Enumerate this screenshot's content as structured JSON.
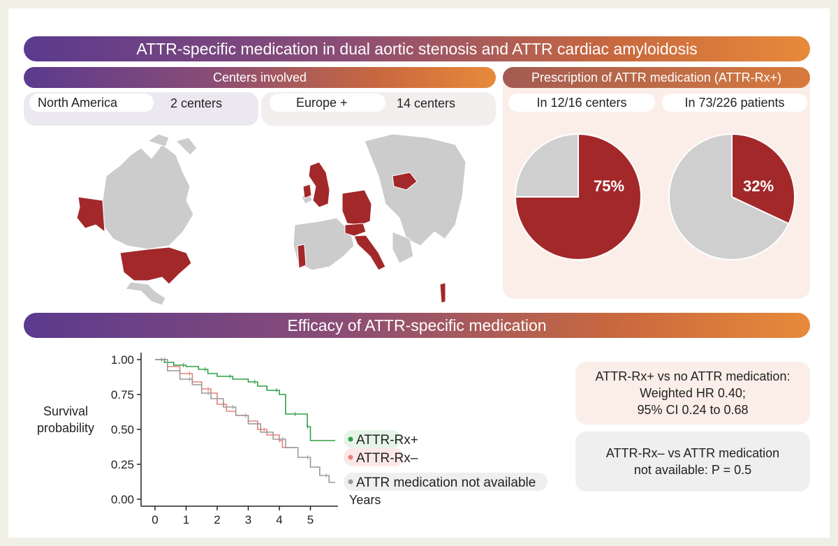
{
  "header": {
    "title": "ATTR-specific medication in dual aortic stenosis and ATTR cardiac amyloidosis"
  },
  "centers": {
    "title": "Centers involved",
    "north_america": {
      "label": "North America",
      "count": "2 centers"
    },
    "europe": {
      "label": "Europe +",
      "count": "14 centers"
    }
  },
  "prescription": {
    "title": "Prescription of ATTR medication (ATTR-Rx+)",
    "centers_label": "In 12/16 centers",
    "patients_label": "In 73/226 patients",
    "pie_centers": {
      "value_label": "75%",
      "fraction": 0.75
    },
    "pie_patients": {
      "value_label": "32%",
      "fraction": 0.32
    }
  },
  "efficacy": {
    "title": "Efficacy of ATTR-specific medication",
    "box1": {
      "line1": "ATTR-Rx+ vs no ATTR medication:",
      "line2": "Weighted HR 0.40;",
      "line3": "95% CI 0.24 to 0.68"
    },
    "box2": {
      "line1": "ATTR-Rx– vs ATTR medication",
      "line2": "not available: P = 0.5"
    }
  },
  "colors": {
    "highlight": "#a3282a",
    "grey": "#cfcfcf",
    "rxplus": "#2ea043",
    "rxminus": "#e8807c",
    "notavail": "#9a9a9a"
  },
  "chart_data": {
    "type": "line",
    "ylabel_line1": "Survival",
    "ylabel_line2": "probability",
    "xlabel": "Years",
    "xlim": [
      0,
      6
    ],
    "ylim": [
      0,
      1
    ],
    "xticks": [
      "0",
      "1",
      "2",
      "3",
      "4",
      "5"
    ],
    "yticks": [
      "0.00",
      "0.25",
      "0.50",
      "0.75",
      "1.00"
    ],
    "series": [
      {
        "name": "ATTR-Rx+",
        "color": "#2ea043",
        "x": [
          0,
          0.3,
          0.6,
          1.0,
          1.4,
          1.7,
          2.0,
          2.5,
          3.0,
          3.3,
          3.6,
          4.0,
          4.2,
          4.6,
          4.9,
          5.0,
          5.8
        ],
        "y": [
          1.0,
          0.98,
          0.96,
          0.95,
          0.93,
          0.9,
          0.88,
          0.86,
          0.84,
          0.81,
          0.78,
          0.75,
          0.61,
          0.61,
          0.52,
          0.42,
          0.42
        ]
      },
      {
        "name": "ATTR-Rx–",
        "color": "#e8807c",
        "x": [
          0,
          0.4,
          0.8,
          1.2,
          1.5,
          1.8,
          2.0,
          2.3,
          2.6,
          3.0,
          3.3,
          3.6,
          4.0,
          4.1,
          4.5
        ],
        "y": [
          1.0,
          0.95,
          0.9,
          0.84,
          0.79,
          0.76,
          0.68,
          0.63,
          0.6,
          0.56,
          0.5,
          0.46,
          0.42,
          0.37,
          0.37
        ]
      },
      {
        "name": "ATTR medication not available",
        "color": "#9a9a9a",
        "x": [
          0,
          0.4,
          0.8,
          1.2,
          1.5,
          1.8,
          2.2,
          2.6,
          3.0,
          3.4,
          3.8,
          4.2,
          4.6,
          5.0,
          5.3,
          5.6,
          5.8
        ],
        "y": [
          1.0,
          0.92,
          0.86,
          0.82,
          0.76,
          0.72,
          0.66,
          0.6,
          0.54,
          0.48,
          0.43,
          0.37,
          0.3,
          0.23,
          0.17,
          0.12,
          0.12
        ]
      }
    ]
  }
}
